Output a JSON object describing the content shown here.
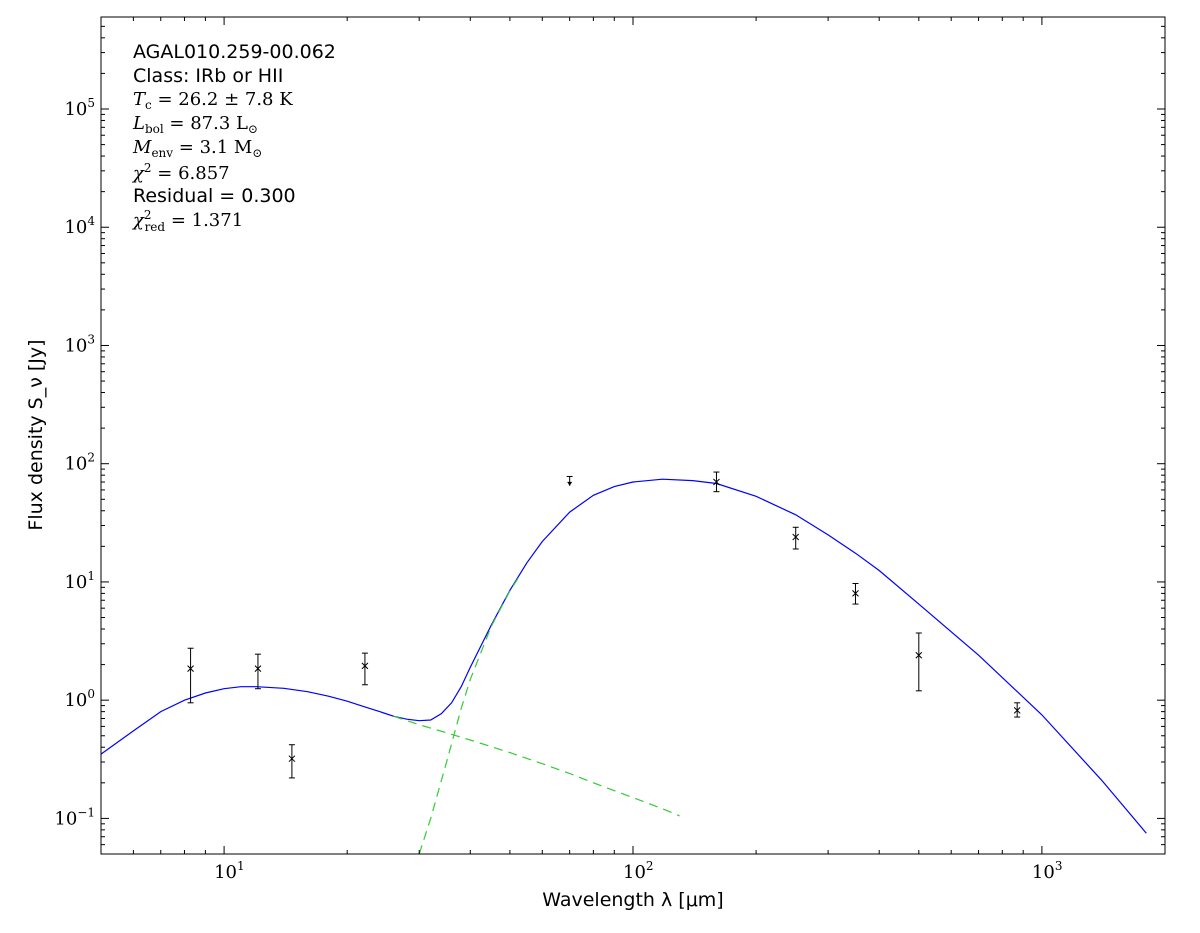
{
  "chart_data": {
    "type": "scatter",
    "title": "",
    "xlabel": "Wavelength λ [μm]",
    "ylabel": "Flux density S_ν [Jy]",
    "xscale": "log",
    "yscale": "log",
    "xlim": [
      5,
      2000
    ],
    "ylim": [
      0.05,
      600000
    ],
    "x_ticks": [
      {
        "value": 10,
        "base": "10",
        "exp": "1"
      },
      {
        "value": 100,
        "base": "10",
        "exp": "2"
      },
      {
        "value": 1000,
        "base": "10",
        "exp": "3"
      }
    ],
    "y_ticks": [
      {
        "value": 0.1,
        "base": "10",
        "exp": "−1"
      },
      {
        "value": 1,
        "base": "10",
        "exp": "0"
      },
      {
        "value": 10,
        "base": "10",
        "exp": "1"
      },
      {
        "value": 100,
        "base": "10",
        "exp": "2"
      },
      {
        "value": 1000,
        "base": "10",
        "exp": "3"
      },
      {
        "value": 10000,
        "base": "10",
        "exp": "4"
      },
      {
        "value": 100000,
        "base": "10",
        "exp": "5"
      }
    ],
    "annotations": {
      "source": "AGAL010.259-00.062",
      "class_label": "Class: IRb or HII",
      "tc": {
        "sym": "T",
        "sub": "c",
        "rest": " = 26.2 ± 7.8 K"
      },
      "lbol": {
        "sym": "L",
        "sub": "bol",
        "rest": " = 87.3 L",
        "sun": "⊙"
      },
      "menv": {
        "sym": "M",
        "sub": "env",
        "rest": " = 3.1 M",
        "sun": "⊙"
      },
      "chi2": {
        "sym": "χ",
        "sup": "2",
        "rest": " = 6.857"
      },
      "residual": "Residual = 0.300",
      "chi2red": {
        "sym": "χ",
        "sup": "2",
        "sub": "red",
        "rest": " = 1.371"
      }
    },
    "series": [
      {
        "kind": "measurements",
        "color": "#000000",
        "points": [
          {
            "x": 8.28,
            "y": 1.85,
            "ylo": 0.95,
            "yhi": 2.75
          },
          {
            "x": 12.1,
            "y": 1.85,
            "ylo": 1.25,
            "yhi": 2.45
          },
          {
            "x": 14.65,
            "y": 0.32,
            "ylo": 0.22,
            "yhi": 0.42
          },
          {
            "x": 22.1,
            "y": 1.95,
            "ylo": 1.35,
            "yhi": 2.5
          },
          {
            "x": 160,
            "y": 70,
            "ylo": 58,
            "yhi": 85
          },
          {
            "x": 250,
            "y": 24,
            "ylo": 19,
            "yhi": 29
          },
          {
            "x": 350,
            "y": 8,
            "ylo": 6.5,
            "yhi": 9.7
          },
          {
            "x": 500,
            "y": 2.4,
            "ylo": 1.2,
            "yhi": 3.7
          },
          {
            "x": 870,
            "y": 0.82,
            "ylo": 0.72,
            "yhi": 0.95
          }
        ]
      },
      {
        "kind": "upper_limits",
        "color": "#000000",
        "points": [
          {
            "x": 70,
            "y": 78,
            "ylim_lower": 65
          }
        ]
      },
      {
        "kind": "total_fit",
        "color": "#0000ff",
        "x": [
          5,
          6,
          7,
          8,
          9,
          10,
          11,
          12,
          14,
          16,
          18,
          20,
          22,
          24,
          26,
          28,
          30,
          32,
          34,
          36,
          38,
          40,
          45,
          50,
          55,
          60,
          70,
          80,
          90,
          100,
          118,
          140,
          160,
          200,
          250,
          300,
          350,
          400,
          500,
          700,
          1000,
          1400,
          1800
        ],
        "y": [
          0.35,
          0.55,
          0.8,
          1.0,
          1.15,
          1.25,
          1.3,
          1.3,
          1.26,
          1.18,
          1.08,
          0.98,
          0.88,
          0.8,
          0.73,
          0.69,
          0.67,
          0.68,
          0.77,
          0.95,
          1.3,
          1.9,
          4.3,
          8.5,
          14.5,
          22,
          39,
          54,
          64,
          70,
          74,
          72,
          68,
          53,
          37,
          25,
          17.5,
          12.5,
          6.5,
          2.4,
          0.75,
          0.21,
          0.075
        ]
      },
      {
        "kind": "warm_component",
        "color": "#33cc33",
        "x": [
          26,
          30,
          35,
          40,
          50,
          60,
          70,
          80,
          100,
          120,
          130
        ],
        "y": [
          0.73,
          0.62,
          0.53,
          0.46,
          0.36,
          0.29,
          0.24,
          0.2,
          0.15,
          0.118,
          0.105
        ]
      },
      {
        "kind": "cold_component",
        "color": "#33cc33",
        "x": [
          30,
          32,
          35,
          38,
          40,
          45,
          50,
          53
        ],
        "y": [
          0.05,
          0.1,
          0.3,
          0.85,
          1.5,
          4.2,
          8.4,
          11.5
        ]
      }
    ]
  }
}
